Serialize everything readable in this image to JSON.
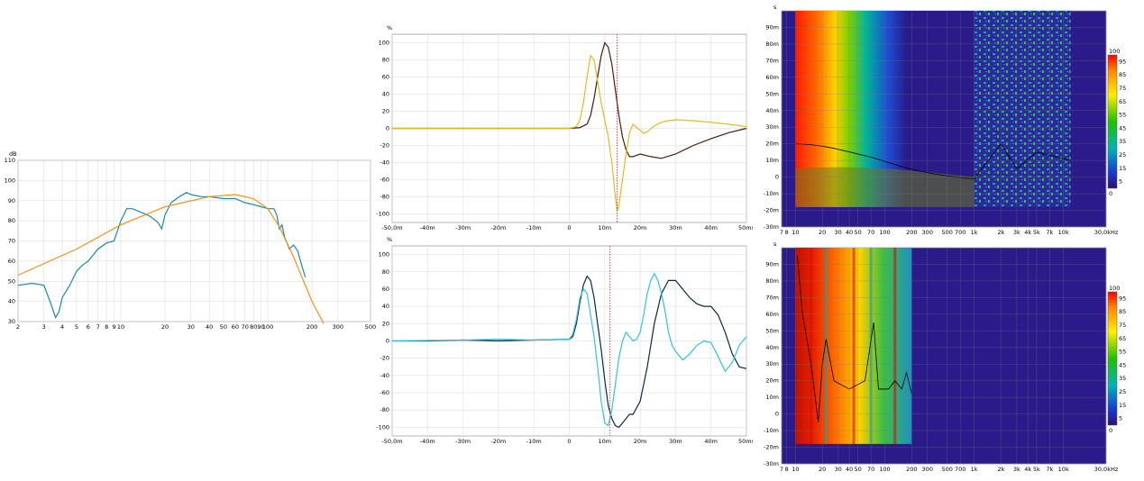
{
  "chart_data": [
    {
      "id": "freq",
      "type": "line",
      "ylabel": "dB",
      "x_scale": "log",
      "xlim": [
        2,
        500
      ],
      "ylim": [
        30,
        110
      ],
      "x_tick_labels": [
        "2",
        "3",
        "4",
        "5",
        "6",
        "7",
        "8",
        "9",
        "10",
        "20",
        "30",
        "40",
        "50",
        "60",
        "70",
        "80",
        "90",
        "100",
        "200",
        "300",
        "500"
      ],
      "x_tick_values": [
        2,
        3,
        4,
        5,
        6,
        7,
        8,
        9,
        10,
        20,
        30,
        40,
        50,
        60,
        70,
        80,
        90,
        100,
        200,
        300,
        500
      ],
      "y_tick_labels": [
        "110",
        "100",
        "90",
        "80",
        "70",
        "60",
        "50",
        "40",
        "30"
      ],
      "y_tick_values": [
        110,
        100,
        90,
        80,
        70,
        60,
        50,
        40,
        30
      ],
      "grid": true,
      "series": [
        {
          "color": "#1a8aa8",
          "x": [
            2,
            2.5,
            3,
            3.3,
            3.6,
            3.8,
            4,
            4.5,
            5,
            5.5,
            6,
            7,
            8,
            9,
            9.5,
            10,
            11,
            12,
            14,
            16,
            18,
            19,
            20,
            22,
            25,
            28,
            30,
            35,
            40,
            50,
            60,
            70,
            80,
            90,
            100,
            110,
            115,
            120,
            125,
            130,
            140,
            150,
            160,
            170,
            180
          ],
          "y": [
            48,
            49,
            48,
            40,
            32,
            35,
            42,
            48,
            55,
            58,
            60,
            66,
            69,
            70,
            75,
            80,
            86,
            86,
            84,
            82,
            79,
            76,
            83,
            89,
            92,
            94,
            93,
            92,
            92,
            91,
            91,
            89,
            88,
            87,
            86,
            86,
            83,
            76,
            78,
            72,
            66,
            68,
            65,
            58,
            52
          ]
        },
        {
          "color": "#f0901a",
          "x": [
            2,
            5,
            10,
            20,
            40,
            60,
            80,
            100,
            120,
            150,
            200,
            240
          ],
          "y": [
            53,
            66,
            78,
            87,
            92,
            93,
            91,
            86,
            77,
            62,
            40,
            29
          ]
        }
      ]
    },
    {
      "id": "impulse1",
      "type": "line",
      "ylabel": "%",
      "xlim": [
        -50,
        50
      ],
      "ylim": [
        -110,
        110
      ],
      "x_tick_labels": [
        "-50,0m",
        "-40m",
        "-30m",
        "-20m",
        "-10m",
        "0",
        "10m",
        "20m",
        "30m",
        "40m",
        "50ms"
      ],
      "x_tick_values": [
        -50,
        -40,
        -30,
        -20,
        -10,
        0,
        10,
        20,
        30,
        40,
        50
      ],
      "y_tick_labels": [
        "100",
        "80",
        "60",
        "40",
        "20",
        "0",
        "-20",
        "-40",
        "-60",
        "-80",
        "-100"
      ],
      "y_tick_values": [
        100,
        80,
        60,
        40,
        20,
        0,
        -20,
        -40,
        -60,
        -80,
        -100
      ],
      "grid": true,
      "marker_x": 13.5,
      "series": [
        {
          "color": "#4a1c0c",
          "x": [
            -50,
            0,
            3,
            5,
            6,
            7,
            8,
            9,
            10,
            11,
            12,
            13,
            14,
            15,
            16,
            17,
            18,
            20,
            23,
            26,
            30,
            35,
            40,
            45,
            50
          ],
          "y": [
            0,
            0,
            1,
            5,
            15,
            35,
            60,
            85,
            100,
            95,
            75,
            45,
            15,
            -10,
            -25,
            -33,
            -33,
            -30,
            -33,
            -35,
            -30,
            -20,
            -12,
            -5,
            0
          ]
        },
        {
          "color": "#e8b820",
          "x": [
            -50,
            0,
            2,
            3,
            4,
            5,
            6,
            7,
            8,
            9,
            10,
            11,
            12,
            13,
            13.5,
            14,
            15,
            16,
            17,
            18,
            19,
            20,
            21,
            22,
            24,
            26,
            28,
            30,
            35,
            40,
            45,
            50
          ],
          "y": [
            0,
            0,
            2,
            10,
            30,
            60,
            85,
            80,
            55,
            30,
            10,
            -10,
            -40,
            -80,
            -97,
            -90,
            -60,
            -30,
            -5,
            5,
            1,
            -2,
            -6,
            -4,
            3,
            7,
            9,
            10,
            9,
            7,
            5,
            2
          ]
        }
      ]
    },
    {
      "id": "impulse2",
      "type": "line",
      "ylabel": "%",
      "xlim": [
        -50,
        50
      ],
      "ylim": [
        -110,
        110
      ],
      "x_tick_labels": [
        "-50,0m",
        "-40m",
        "-30m",
        "-20m",
        "-10m",
        "0",
        "10m",
        "20m",
        "30m",
        "40m",
        "50ms"
      ],
      "x_tick_values": [
        -50,
        -40,
        -30,
        -20,
        -10,
        0,
        10,
        20,
        30,
        40,
        50
      ],
      "y_tick_labels": [
        "100",
        "80",
        "60",
        "40",
        "20",
        "0",
        "-20",
        "-40",
        "-60",
        "-80",
        "-100"
      ],
      "y_tick_values": [
        100,
        80,
        60,
        40,
        20,
        0,
        -20,
        -40,
        -60,
        -80,
        -100
      ],
      "grid": true,
      "marker_x": 11.5,
      "series": [
        {
          "color": "#0b2a3a",
          "x": [
            -50,
            -40,
            -30,
            -20,
            -10,
            0,
            1,
            2,
            3,
            4,
            5,
            6,
            7,
            8,
            9,
            10,
            11,
            12,
            13,
            14,
            15,
            16,
            17,
            18,
            20,
            22,
            24,
            26,
            28,
            30,
            32,
            34,
            36,
            38,
            40,
            42,
            44,
            46,
            48,
            50
          ],
          "y": [
            0,
            0,
            1,
            0,
            1,
            2,
            5,
            20,
            45,
            65,
            75,
            70,
            50,
            20,
            -10,
            -45,
            -75,
            -90,
            -98,
            -100,
            -95,
            -90,
            -85,
            -85,
            -70,
            -30,
            20,
            55,
            70,
            70,
            60,
            50,
            43,
            40,
            40,
            30,
            10,
            -15,
            -30,
            -32
          ]
        },
        {
          "color": "#2ec4de",
          "x": [
            -50,
            -30,
            -20,
            -10,
            0,
            1,
            2,
            3,
            4,
            5,
            6,
            7,
            8,
            9,
            10,
            11,
            12,
            13,
            14,
            15,
            16,
            17,
            18,
            19,
            20,
            21,
            22,
            23,
            24,
            25,
            26,
            27,
            28,
            29,
            30,
            32,
            34,
            36,
            38,
            40,
            42,
            44,
            46,
            48,
            50
          ],
          "y": [
            0,
            1,
            2,
            1,
            2,
            8,
            25,
            50,
            60,
            55,
            30,
            5,
            -30,
            -70,
            -95,
            -98,
            -80,
            -50,
            -20,
            0,
            10,
            5,
            0,
            2,
            10,
            30,
            55,
            70,
            78,
            70,
            55,
            35,
            10,
            -5,
            -12,
            -22,
            -15,
            -5,
            0,
            -2,
            -18,
            -35,
            -25,
            -5,
            5
          ]
        }
      ]
    },
    {
      "id": "spectrogram1",
      "type": "heatmap",
      "ylabel": "s",
      "x_scale": "log",
      "xlim": [
        7,
        30000
      ],
      "ylim": [
        -30,
        100
      ],
      "x_tick_labels": [
        "7",
        "8",
        "10",
        "20",
        "30",
        "40",
        "50",
        "70",
        "100",
        "200",
        "300",
        "500",
        "700",
        "1k",
        "2k",
        "3k",
        "4k",
        "5k",
        "7k",
        "10k",
        "30,0kHz"
      ],
      "x_tick_values": [
        7,
        8,
        10,
        20,
        30,
        40,
        50,
        70,
        100,
        200,
        300,
        500,
        700,
        1000,
        2000,
        3000,
        4000,
        5000,
        7000,
        10000,
        30000
      ],
      "y_tick_labels": [
        "90m",
        "80m",
        "70m",
        "60m",
        "50m",
        "40m",
        "30m",
        "20m",
        "10m",
        "0",
        "-10m",
        "-20m",
        "-30m"
      ],
      "y_tick_values": [
        90,
        80,
        70,
        60,
        50,
        40,
        30,
        20,
        10,
        0,
        -10,
        -20,
        -30
      ],
      "colorbar_labels": [
        "100",
        "95",
        "85",
        "75",
        "65",
        "55",
        "45",
        "35",
        "25",
        "15",
        "5",
        "0"
      ],
      "colorbar_values": [
        100,
        95,
        85,
        75,
        65,
        55,
        45,
        35,
        25,
        15,
        5,
        0
      ]
    },
    {
      "id": "spectrogram2",
      "type": "heatmap",
      "ylabel": "s",
      "x_scale": "log",
      "xlim": [
        7,
        30000
      ],
      "ylim": [
        -30,
        100
      ],
      "x_tick_labels": [
        "7",
        "8",
        "10",
        "20",
        "30",
        "40",
        "50",
        "70",
        "100",
        "200",
        "300",
        "500",
        "700",
        "1k",
        "2k",
        "3k",
        "4k",
        "5k",
        "7k",
        "10k",
        "30,0kHz"
      ],
      "x_tick_values": [
        7,
        8,
        10,
        20,
        30,
        40,
        50,
        70,
        100,
        200,
        300,
        500,
        700,
        1000,
        2000,
        3000,
        4000,
        5000,
        7000,
        10000,
        30000
      ],
      "y_tick_labels": [
        "90m",
        "80m",
        "70m",
        "60m",
        "50m",
        "40m",
        "30m",
        "20m",
        "10m",
        "0",
        "-10m",
        "-20m",
        "-30m"
      ],
      "y_tick_values": [
        90,
        80,
        70,
        60,
        50,
        40,
        30,
        20,
        10,
        0,
        -10,
        -20,
        -30
      ],
      "colorbar_labels": [
        "100",
        "95",
        "85",
        "75",
        "65",
        "55",
        "45",
        "35",
        "25",
        "15",
        "5",
        "0"
      ],
      "colorbar_values": [
        100,
        95,
        85,
        75,
        65,
        55,
        45,
        35,
        25,
        15,
        5,
        0
      ]
    }
  ]
}
